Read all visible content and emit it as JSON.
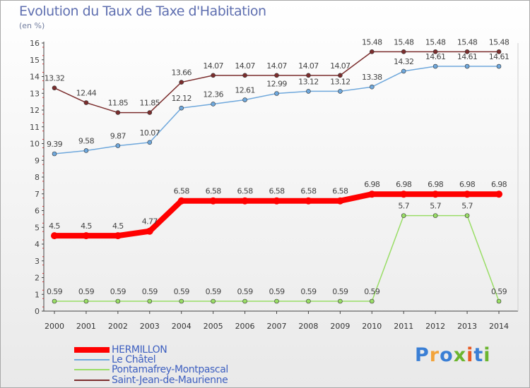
{
  "title": "Evolution du Taux de Taxe d'Habitation",
  "unit_label": "(en %)",
  "logo": {
    "text": "Proxiti",
    "colors": [
      "#3a7fd5",
      "#f2a33a",
      "#3a7fd5",
      "#6bb52f",
      "#e85b25",
      "#3a7fd5",
      "#6bb52f"
    ]
  },
  "chart_data": {
    "type": "line",
    "x": [
      "2000",
      "2001",
      "2002",
      "2003",
      "2004",
      "2005",
      "2006",
      "2007",
      "2008",
      "2009",
      "2010",
      "2011",
      "2012",
      "2013",
      "2014"
    ],
    "ylim": [
      0,
      16
    ],
    "yticks": [
      0,
      1,
      2,
      3,
      4,
      5,
      6,
      7,
      8,
      9,
      10,
      11,
      12,
      13,
      14,
      15,
      16
    ],
    "grid": false,
    "legend_position": "bottom-left",
    "series": [
      {
        "name": "HERMILLON",
        "color": "#ff0000",
        "values": [
          4.5,
          4.5,
          4.5,
          4.77,
          6.58,
          6.58,
          6.58,
          6.58,
          6.58,
          6.58,
          6.98,
          6.98,
          6.98,
          6.98,
          6.98
        ],
        "labels": [
          "4.5",
          "4.5",
          "4.5",
          "4.77",
          "6.58",
          "6.58",
          "6.58",
          "6.58",
          "6.58",
          "6.58",
          "6.98",
          "6.98",
          "6.98",
          "6.98",
          "6.98"
        ]
      },
      {
        "name": "Le Châtel",
        "color": "#6fa8dc",
        "values": [
          9.39,
          9.58,
          9.87,
          10.07,
          12.12,
          12.36,
          12.61,
          12.99,
          13.12,
          13.12,
          13.38,
          14.32,
          14.61,
          14.61,
          14.61
        ],
        "labels": [
          "9.39",
          "9.58",
          "9.87",
          "10.07",
          "12.12",
          "12.36",
          "12.61",
          "12.99",
          "13.12",
          "13.12",
          "13.38",
          "14.32",
          "14.61",
          "14.61",
          "14.61"
        ]
      },
      {
        "name": "Pontamafrey-Montpascal",
        "color": "#99dd66",
        "values": [
          0.59,
          0.59,
          0.59,
          0.59,
          0.59,
          0.59,
          0.59,
          0.59,
          0.59,
          0.59,
          0.59,
          5.7,
          5.7,
          5.7,
          0.59
        ],
        "labels": [
          "0.59",
          "0.59",
          "0.59",
          "0.59",
          "0.59",
          "0.59",
          "0.59",
          "0.59",
          "0.59",
          "0.59",
          "0.59",
          "5.7",
          "5.7",
          "5.7",
          "0.59"
        ]
      },
      {
        "name": "Saint-Jean-de-Maurienne",
        "color": "#7b2d2d",
        "values": [
          13.32,
          12.44,
          11.85,
          11.85,
          13.66,
          14.07,
          14.07,
          14.07,
          14.07,
          14.07,
          15.48,
          15.48,
          15.48,
          15.48,
          15.48
        ],
        "labels": [
          "13.32",
          "12.44",
          "11.85",
          "11.85",
          "13.66",
          "14.07",
          "14.07",
          "14.07",
          "14.07",
          "14.07",
          "15.48",
          "15.48",
          "15.48",
          "15.48",
          "15.48"
        ]
      }
    ]
  }
}
